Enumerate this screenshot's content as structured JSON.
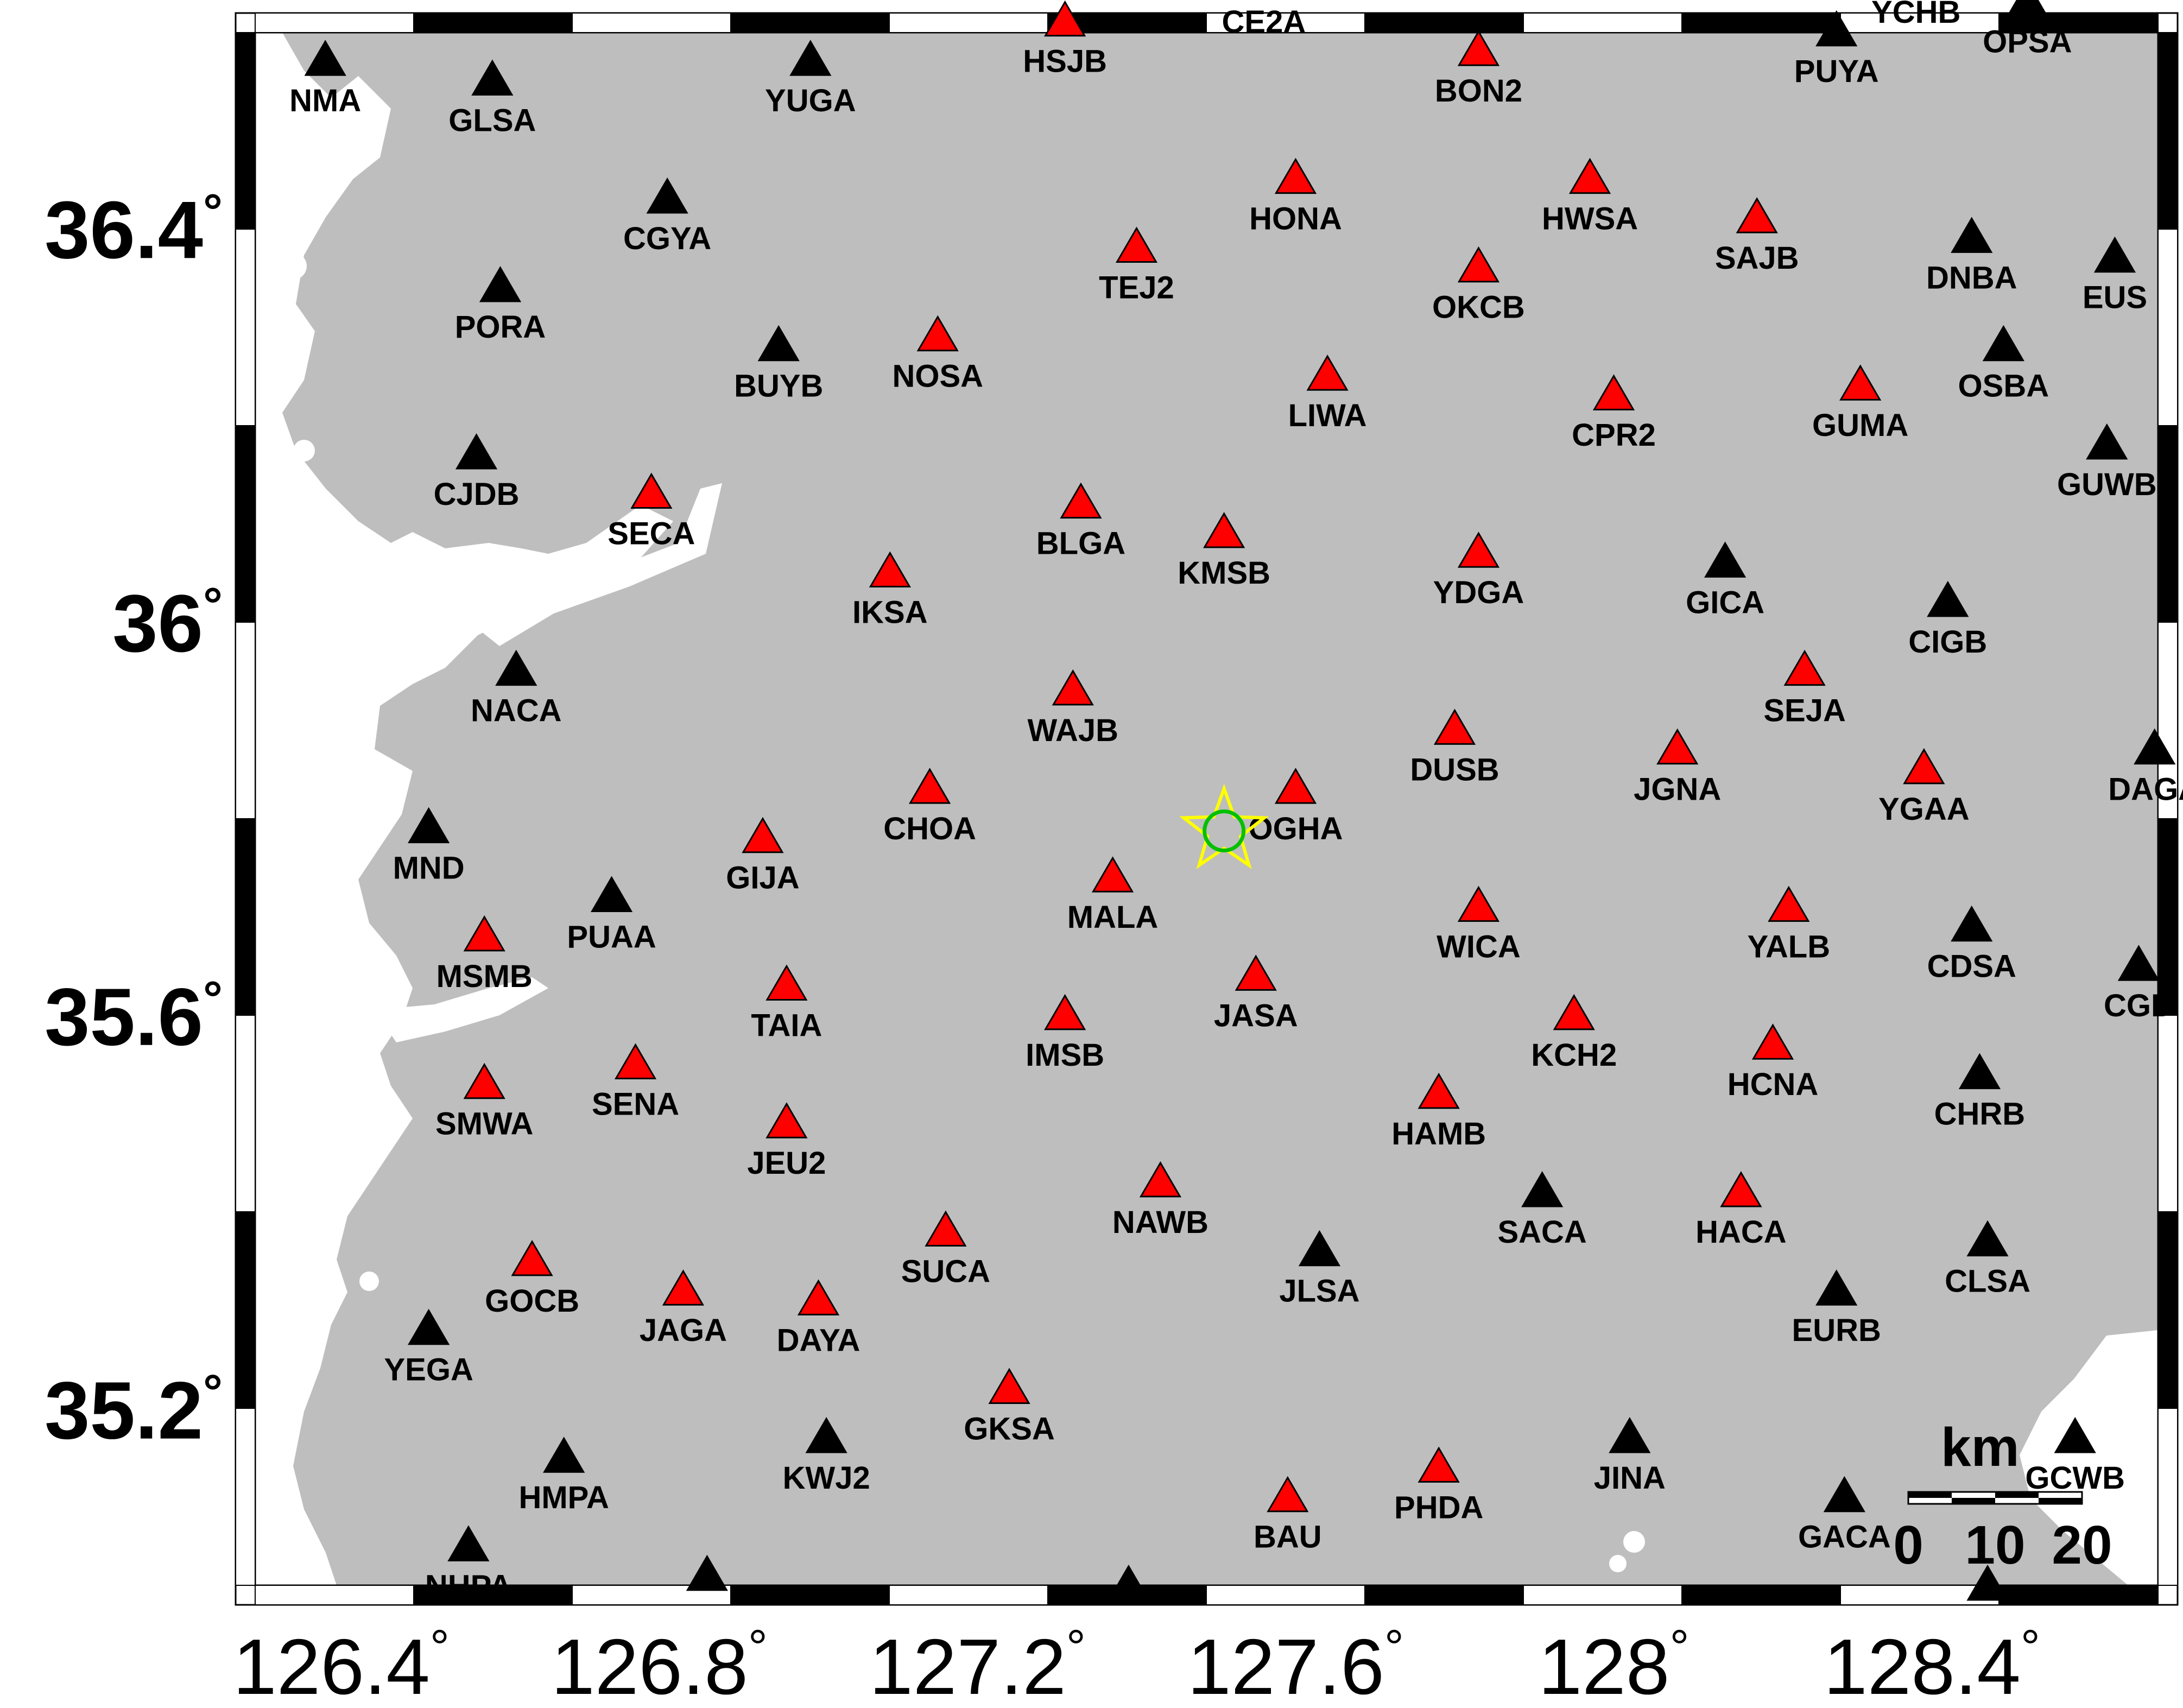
{
  "map": {
    "lat_ticks": [
      {
        "label": "36.4",
        "value": 36.4
      },
      {
        "label": "36",
        "value": 36.0
      },
      {
        "label": "35.6",
        "value": 35.6
      },
      {
        "label": "35.2",
        "value": 35.2
      }
    ],
    "lon_ticks": [
      {
        "label": "126.4",
        "value": 126.4
      },
      {
        "label": "126.8",
        "value": 126.8
      },
      {
        "label": "127.2",
        "value": 127.2
      },
      {
        "label": "127.6",
        "value": 127.6
      },
      {
        "label": "128",
        "value": 128.0
      },
      {
        "label": "128.4",
        "value": 128.4
      }
    ],
    "degree_symbol": "°",
    "scale_bar": {
      "unit": "km",
      "labels": [
        "0",
        "10",
        "20"
      ]
    },
    "colors": {
      "land": "#bebebe",
      "sea": "#ffffff",
      "station_red": "#ff0000",
      "station_black": "#000000",
      "epicenter_star": "#ffff00",
      "epicenter_circle": "#00c000"
    },
    "epicenter": {
      "lon": 127.51,
      "lat": 35.79
    },
    "stations": [
      {
        "name": "NMA",
        "lon": 126.38,
        "lat": 36.57,
        "color": "black"
      },
      {
        "name": "GLSA",
        "lon": 126.59,
        "lat": 36.55,
        "color": "black"
      },
      {
        "name": "YUGA",
        "lon": 126.99,
        "lat": 36.57,
        "color": "black"
      },
      {
        "name": "HSJB",
        "lon": 127.31,
        "lat": 36.61,
        "color": "red"
      },
      {
        "name": "CE2A",
        "lon": 127.56,
        "lat": 36.65,
        "color": "black"
      },
      {
        "name": "BON2",
        "lon": 127.83,
        "lat": 36.58,
        "color": "red"
      },
      {
        "name": "PUYA",
        "lon": 128.28,
        "lat": 36.6,
        "color": "black"
      },
      {
        "name": "YCHB",
        "lon": 128.38,
        "lat": 36.66,
        "color": "black"
      },
      {
        "name": "OPSA",
        "lon": 128.52,
        "lat": 36.63,
        "color": "black"
      },
      {
        "name": "HONA",
        "lon": 127.6,
        "lat": 36.45,
        "color": "red"
      },
      {
        "name": "HWSA",
        "lon": 127.97,
        "lat": 36.45,
        "color": "red"
      },
      {
        "name": "SAJB",
        "lon": 128.18,
        "lat": 36.41,
        "color": "red"
      },
      {
        "name": "CGYA",
        "lon": 126.81,
        "lat": 36.43,
        "color": "black"
      },
      {
        "name": "DNBA",
        "lon": 128.45,
        "lat": 36.39,
        "color": "black"
      },
      {
        "name": "TEJ2",
        "lon": 127.4,
        "lat": 36.38,
        "color": "red"
      },
      {
        "name": "OKCB",
        "lon": 127.83,
        "lat": 36.36,
        "color": "red"
      },
      {
        "name": "EUS",
        "lon": 128.63,
        "lat": 36.37,
        "color": "black"
      },
      {
        "name": "PORA",
        "lon": 126.6,
        "lat": 36.34,
        "color": "black"
      },
      {
        "name": "BUYB",
        "lon": 126.95,
        "lat": 36.28,
        "color": "black"
      },
      {
        "name": "NOSA",
        "lon": 127.15,
        "lat": 36.29,
        "color": "red"
      },
      {
        "name": "LIWA",
        "lon": 127.64,
        "lat": 36.25,
        "color": "red"
      },
      {
        "name": "CPR2",
        "lon": 128.0,
        "lat": 36.23,
        "color": "red"
      },
      {
        "name": "GUMA",
        "lon": 128.31,
        "lat": 36.24,
        "color": "red"
      },
      {
        "name": "OSBA",
        "lon": 128.49,
        "lat": 36.28,
        "color": "black"
      },
      {
        "name": "GUWB",
        "lon": 128.62,
        "lat": 36.18,
        "color": "black"
      },
      {
        "name": "CJDB",
        "lon": 126.57,
        "lat": 36.17,
        "color": "black"
      },
      {
        "name": "SECA",
        "lon": 126.79,
        "lat": 36.13,
        "color": "red"
      },
      {
        "name": "BLGA",
        "lon": 127.33,
        "lat": 36.12,
        "color": "red"
      },
      {
        "name": "KMSB",
        "lon": 127.51,
        "lat": 36.09,
        "color": "red"
      },
      {
        "name": "YDGA",
        "lon": 127.83,
        "lat": 36.07,
        "color": "red"
      },
      {
        "name": "GICA",
        "lon": 128.14,
        "lat": 36.06,
        "color": "black"
      },
      {
        "name": "IKSA",
        "lon": 127.09,
        "lat": 36.05,
        "color": "red"
      },
      {
        "name": "CIGB",
        "lon": 128.42,
        "lat": 36.02,
        "color": "black"
      },
      {
        "name": "NACA",
        "lon": 126.62,
        "lat": 35.95,
        "color": "black"
      },
      {
        "name": "SEJA",
        "lon": 128.24,
        "lat": 35.95,
        "color": "red"
      },
      {
        "name": "WAJB",
        "lon": 127.32,
        "lat": 35.93,
        "color": "red"
      },
      {
        "name": "DUSB",
        "lon": 127.8,
        "lat": 35.89,
        "color": "red"
      },
      {
        "name": "JGNA",
        "lon": 128.08,
        "lat": 35.87,
        "color": "red"
      },
      {
        "name": "DAGA",
        "lon": 128.68,
        "lat": 35.87,
        "color": "black"
      },
      {
        "name": "YGAA",
        "lon": 128.39,
        "lat": 35.85,
        "color": "red"
      },
      {
        "name": "CHOA",
        "lon": 127.14,
        "lat": 35.83,
        "color": "red"
      },
      {
        "name": "OGHA",
        "lon": 127.6,
        "lat": 35.83,
        "color": "red"
      },
      {
        "name": "MND",
        "lon": 126.51,
        "lat": 35.79,
        "color": "black"
      },
      {
        "name": "GIJA",
        "lon": 126.93,
        "lat": 35.78,
        "color": "red"
      },
      {
        "name": "MALA",
        "lon": 127.37,
        "lat": 35.74,
        "color": "red"
      },
      {
        "name": "PUAA",
        "lon": 126.74,
        "lat": 35.72,
        "color": "black"
      },
      {
        "name": "WICA",
        "lon": 127.83,
        "lat": 35.71,
        "color": "red"
      },
      {
        "name": "YALB",
        "lon": 128.22,
        "lat": 35.71,
        "color": "red"
      },
      {
        "name": "CDSA",
        "lon": 128.45,
        "lat": 35.69,
        "color": "black"
      },
      {
        "name": "MSMB",
        "lon": 126.58,
        "lat": 35.68,
        "color": "red"
      },
      {
        "name": "CGD",
        "lon": 128.66,
        "lat": 35.65,
        "color": "black"
      },
      {
        "name": "TAIA",
        "lon": 126.96,
        "lat": 35.63,
        "color": "red"
      },
      {
        "name": "JASA",
        "lon": 127.55,
        "lat": 35.64,
        "color": "red"
      },
      {
        "name": "IMSB",
        "lon": 127.31,
        "lat": 35.6,
        "color": "red"
      },
      {
        "name": "KCH2",
        "lon": 127.95,
        "lat": 35.6,
        "color": "red"
      },
      {
        "name": "HCNA",
        "lon": 128.2,
        "lat": 35.57,
        "color": "red"
      },
      {
        "name": "SMWA",
        "lon": 126.58,
        "lat": 35.53,
        "color": "red"
      },
      {
        "name": "SENA",
        "lon": 126.77,
        "lat": 35.55,
        "color": "red"
      },
      {
        "name": "CHRB",
        "lon": 128.46,
        "lat": 35.54,
        "color": "black"
      },
      {
        "name": "HAMB",
        "lon": 127.78,
        "lat": 35.52,
        "color": "red"
      },
      {
        "name": "JEU2",
        "lon": 126.96,
        "lat": 35.49,
        "color": "red"
      },
      {
        "name": "NAWB",
        "lon": 127.43,
        "lat": 35.43,
        "color": "red"
      },
      {
        "name": "SACA",
        "lon": 127.91,
        "lat": 35.42,
        "color": "black"
      },
      {
        "name": "HACA",
        "lon": 128.16,
        "lat": 35.42,
        "color": "red"
      },
      {
        "name": "SUCA",
        "lon": 127.16,
        "lat": 35.38,
        "color": "red"
      },
      {
        "name": "JLSA",
        "lon": 127.63,
        "lat": 35.36,
        "color": "black"
      },
      {
        "name": "CLSA",
        "lon": 128.47,
        "lat": 35.37,
        "color": "black"
      },
      {
        "name": "GOCB",
        "lon": 126.64,
        "lat": 35.35,
        "color": "red"
      },
      {
        "name": "JAGA",
        "lon": 126.83,
        "lat": 35.32,
        "color": "red"
      },
      {
        "name": "DAYA",
        "lon": 127.0,
        "lat": 35.31,
        "color": "red"
      },
      {
        "name": "EURB",
        "lon": 128.28,
        "lat": 35.32,
        "color": "black"
      },
      {
        "name": "YEGA",
        "lon": 126.51,
        "lat": 35.28,
        "color": "black"
      },
      {
        "name": "GKSA",
        "lon": 127.24,
        "lat": 35.22,
        "color": "red"
      },
      {
        "name": "KWJ2",
        "lon": 127.01,
        "lat": 35.17,
        "color": "black"
      },
      {
        "name": "JINA",
        "lon": 128.02,
        "lat": 35.17,
        "color": "black"
      },
      {
        "name": "HMPA",
        "lon": 126.68,
        "lat": 35.15,
        "color": "black"
      },
      {
        "name": "GCWB",
        "lon": 128.58,
        "lat": 35.17,
        "color": "black"
      },
      {
        "name": "PHDA",
        "lon": 127.78,
        "lat": 35.14,
        "color": "red"
      },
      {
        "name": "BAU",
        "lon": 127.59,
        "lat": 35.11,
        "color": "red"
      },
      {
        "name": "GACA",
        "lon": 128.29,
        "lat": 35.11,
        "color": "black"
      },
      {
        "name": "NHPA",
        "lon": 126.56,
        "lat": 35.06,
        "color": "black"
      },
      {
        "name": "",
        "lon": 126.86,
        "lat": 35.03,
        "color": "black"
      },
      {
        "name": "",
        "lon": 127.39,
        "lat": 35.02,
        "color": "black"
      },
      {
        "name": "",
        "lon": 128.47,
        "lat": 35.02,
        "color": "black"
      }
    ]
  }
}
